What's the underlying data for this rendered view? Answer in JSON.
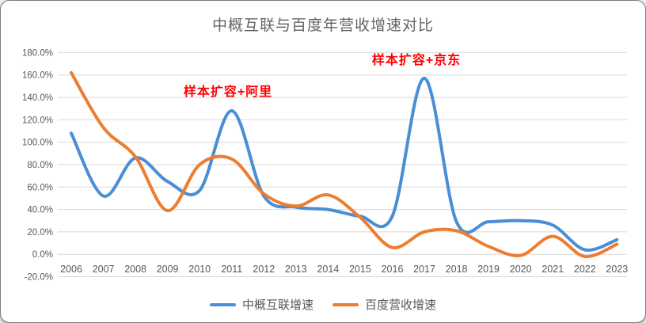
{
  "chart": {
    "title": "中概互联与百度年营收增速对比",
    "annotations": [
      {
        "text": "样本扩容+阿里"
      },
      {
        "text": "样本扩容+京东"
      }
    ]
  },
  "chart_data": {
    "type": "line",
    "title": "中概互联与百度年营收增速对比",
    "categories": [
      "2006",
      "2007",
      "2008",
      "2009",
      "2010",
      "2011",
      "2012",
      "2013",
      "2014",
      "2015",
      "2016",
      "2017",
      "2018",
      "2019",
      "2020",
      "2021",
      "2022",
      "2023"
    ],
    "series": [
      {
        "name": "中概互联增速",
        "slug": "china-internet-growth",
        "color": "#4A8ED5",
        "values": [
          108,
          52,
          86,
          65,
          57,
          128,
          52,
          42,
          40,
          34,
          34,
          157,
          29,
          29,
          30,
          26,
          4,
          13
        ]
      },
      {
        "name": "百度营收增速",
        "slug": "baidu-revenue-growth",
        "color": "#ED7D31",
        "values": [
          162,
          113,
          87,
          39,
          80,
          85,
          54,
          43,
          53,
          33,
          6,
          20,
          21,
          7,
          -1,
          16,
          -2,
          9
        ]
      }
    ],
    "xlabel": "",
    "ylabel": "",
    "ylim": [
      -20,
      180
    ],
    "ytick_step": 20,
    "ytick_labels": [
      "180.0%",
      "160.0%",
      "140.0%",
      "120.0%",
      "100.0%",
      "80.0%",
      "60.0%",
      "40.0%",
      "20.0%",
      "0.0%",
      "-20.0%"
    ],
    "grid": true,
    "smooth": true,
    "legend_position": "bottom",
    "colors": {
      "gridline": "#D8D8D8",
      "axis_text": "#595959",
      "title_text": "#646464",
      "annotation_text": "#FF0000",
      "background": "#FFFFFF"
    }
  }
}
